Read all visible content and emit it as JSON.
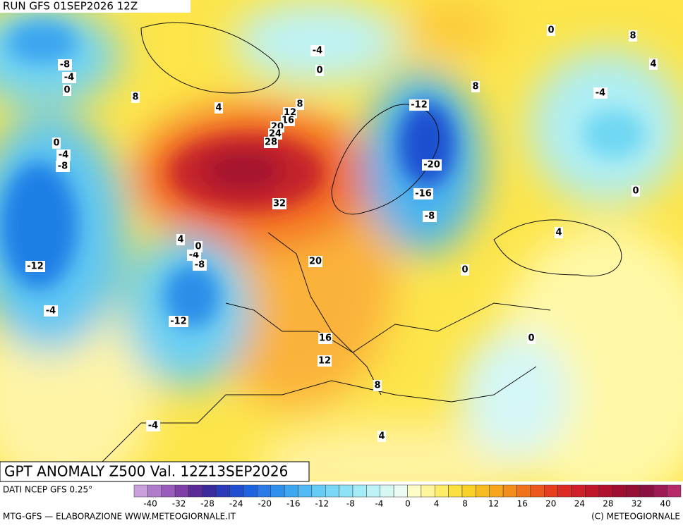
{
  "header": {
    "run": "RUN GFS 01SEP2026 12Z"
  },
  "map": {
    "title": "GPT ANOMALY Z500 Val. 12Z13SEP2026",
    "contour_labels": [
      "-8",
      "-4",
      "0",
      "8",
      "4",
      "-4",
      "0",
      "8",
      "12",
      "16",
      "20",
      "24",
      "28",
      "32",
      "20",
      "16",
      "12",
      "8",
      "4",
      "-4",
      "-12",
      "-8",
      "-4",
      "0",
      "4",
      "-12",
      "-4",
      "0",
      "-4",
      "-8",
      "-12",
      "-20",
      "-16",
      "-8",
      "0",
      "8",
      "0",
      "8",
      "4",
      "-4",
      "0",
      "4",
      "0"
    ]
  },
  "legend": {
    "source": "DATI NCEP GFS 0.25°",
    "labels": [
      "-40",
      "-32",
      "-28",
      "-24",
      "-20",
      "-16",
      "-12",
      "-8",
      "-4",
      "0",
      "4",
      "8",
      "12",
      "16",
      "20",
      "24",
      "28",
      "32",
      "40"
    ]
  },
  "footer": {
    "left": "MTG-GFS — ELABORAZIONE WWW.METEOGIORNALE.IT",
    "right": "(C) METEOGIORNALE"
  }
}
